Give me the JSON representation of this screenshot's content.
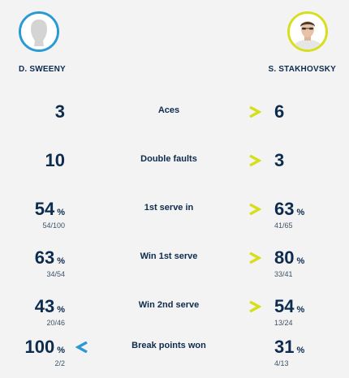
{
  "players": {
    "left": {
      "name": "D. SWEENY"
    },
    "right": {
      "name": "S. STAKHOVSKY"
    }
  },
  "colors": {
    "left_accent": "#2a9ad4",
    "right_accent": "#d7de1c",
    "text": "#0d2b4e"
  },
  "stats": [
    {
      "label": "Aces",
      "left": {
        "value": "3"
      },
      "right": {
        "value": "6"
      },
      "advantage": "right"
    },
    {
      "label": "Double faults",
      "left": {
        "value": "10"
      },
      "right": {
        "value": "3"
      },
      "advantage": "right"
    },
    {
      "label": "1st serve in",
      "left": {
        "value": "54",
        "unit": "%",
        "detail": "54/100"
      },
      "right": {
        "value": "63",
        "unit": "%",
        "detail": "41/65"
      },
      "advantage": "right"
    },
    {
      "label": "Win 1st serve",
      "left": {
        "value": "63",
        "unit": "%",
        "detail": "34/54"
      },
      "right": {
        "value": "80",
        "unit": "%",
        "detail": "33/41"
      },
      "advantage": "right"
    },
    {
      "label": "Win 2nd serve",
      "left": {
        "value": "43",
        "unit": "%",
        "detail": "20/46"
      },
      "right": {
        "value": "54",
        "unit": "%",
        "detail": "13/24"
      },
      "advantage": "right"
    },
    {
      "label": "Break points won",
      "left": {
        "value": "100",
        "unit": "%",
        "detail": "2/2"
      },
      "right": {
        "value": "31",
        "unit": "%",
        "detail": "4/13"
      },
      "advantage": "left"
    }
  ]
}
